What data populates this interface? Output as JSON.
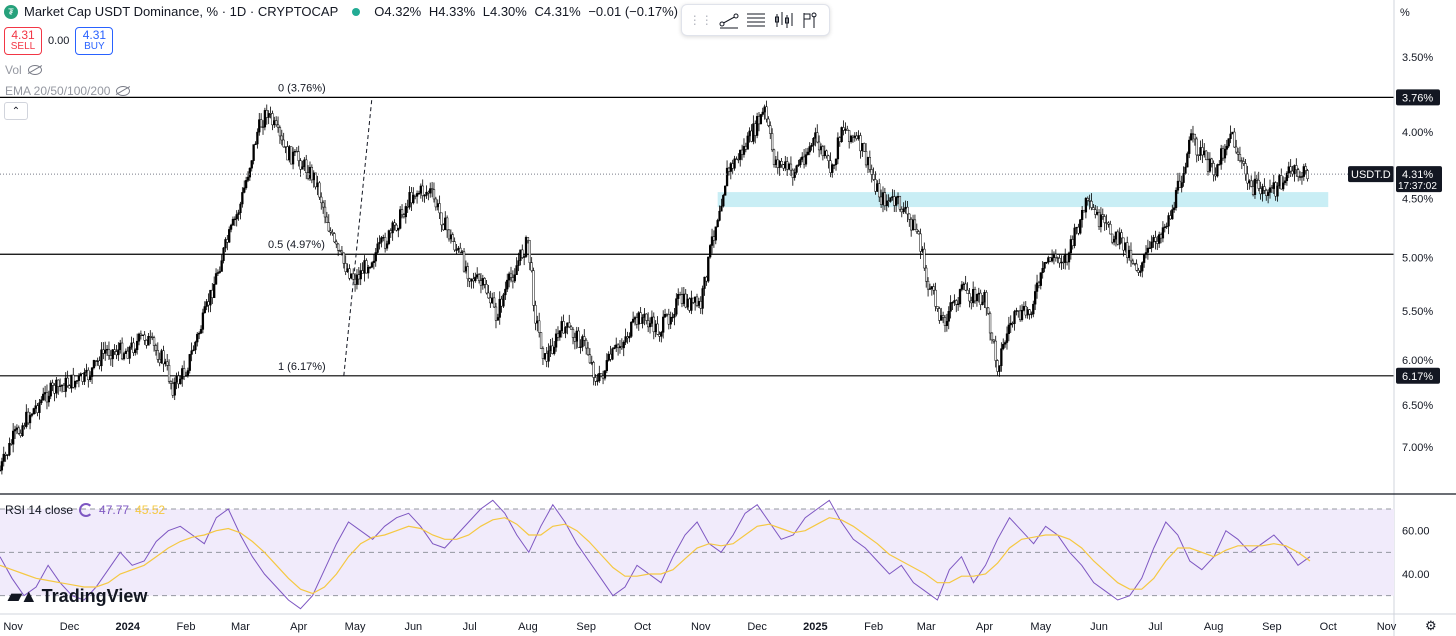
{
  "header": {
    "title": "Market Cap USDT Dominance, % · 1D · CRYPTOCAP",
    "ohlc": {
      "open": "O4.32%",
      "high": "H4.33%",
      "low": "L4.30%",
      "close": "C4.31%",
      "change": "−0.01 (−0.17%)"
    }
  },
  "trade": {
    "sell_price": "4.31",
    "sell_label": "SELL",
    "spread": "0.00",
    "buy_price": "4.31",
    "buy_label": "BUY"
  },
  "indicators": {
    "vol": "Vol",
    "ema": "EMA 20/50/100/200"
  },
  "scale_unit": "%",
  "colors": {
    "up": "#000000",
    "fib": "#000000",
    "zone": "#c9eef5",
    "rsi": "#7e57c2",
    "rsi_ma": "#f5c842",
    "rsi_band": "#f1ebfb",
    "rsi_extreme": "#f8c8d0",
    "toolbar_icons": "#131722"
  },
  "toolbar": {
    "icons": [
      "drag-handle-icon",
      "trend-line-icon",
      "horizontal-lines-icon",
      "bars-icon",
      "flag-icon"
    ]
  },
  "chart_data": [
    {
      "type": "candlestick",
      "ylabel": "",
      "scale": "log",
      "y_inverted": true,
      "ylim": [
        7.6,
        3.3
      ],
      "x_range": [
        "2023-10-25",
        "2025-11-05"
      ],
      "yticks": [
        "3.50%",
        "4.00%",
        "4.50%",
        "5.00%",
        "5.50%",
        "6.00%",
        "6.50%",
        "7.00%"
      ],
      "ytick_values": [
        3.5,
        4.0,
        4.5,
        5.0,
        5.5,
        6.0,
        6.5,
        7.0
      ],
      "xticks": [
        "Nov",
        "Dec",
        "2024",
        "Feb",
        "Mar",
        "Apr",
        "May",
        "Jun",
        "Jul",
        "Aug",
        "Sep",
        "Oct",
        "Nov",
        "Dec",
        "2025",
        "Feb",
        "Mar",
        "Apr",
        "May",
        "Jun",
        "Jul",
        "Aug",
        "Sep",
        "Oct",
        "Nov"
      ],
      "xtick_dates": [
        "2023-11-01",
        "2023-12-01",
        "2024-01-01",
        "2024-02-01",
        "2024-03-01",
        "2024-04-01",
        "2024-05-01",
        "2024-06-01",
        "2024-07-01",
        "2024-08-01",
        "2024-09-01",
        "2024-10-01",
        "2024-11-01",
        "2024-12-01",
        "2025-01-01",
        "2025-02-01",
        "2025-03-01",
        "2025-04-01",
        "2025-05-01",
        "2025-06-01",
        "2025-07-01",
        "2025-08-01",
        "2025-09-01",
        "2025-10-01",
        "2025-11-01"
      ],
      "xtick_bold": [
        "2024",
        "2025"
      ],
      "series_close": [
        [
          "2023-10-25",
          7.3
        ],
        [
          "2023-11-01",
          6.9
        ],
        [
          "2023-11-10",
          6.6
        ],
        [
          "2023-11-20",
          6.35
        ],
        [
          "2023-11-30",
          6.25
        ],
        [
          "2023-12-10",
          6.2
        ],
        [
          "2023-12-20",
          5.9
        ],
        [
          "2024-01-01",
          5.9
        ],
        [
          "2024-01-10",
          5.75
        ],
        [
          "2024-01-20",
          6.0
        ],
        [
          "2024-01-25",
          6.3
        ],
        [
          "2024-02-01",
          6.1
        ],
        [
          "2024-02-10",
          5.6
        ],
        [
          "2024-02-20",
          5.0
        ],
        [
          "2024-03-01",
          4.55
        ],
        [
          "2024-03-10",
          4.0
        ],
        [
          "2024-03-15",
          3.85
        ],
        [
          "2024-03-25",
          4.15
        ],
        [
          "2024-04-01",
          4.2
        ],
        [
          "2024-04-10",
          4.35
        ],
        [
          "2024-04-20",
          4.9
        ],
        [
          "2024-04-25",
          5.05
        ],
        [
          "2024-05-01",
          5.2
        ],
        [
          "2024-05-10",
          5.0
        ],
        [
          "2024-05-20",
          4.8
        ],
        [
          "2024-06-01",
          4.45
        ],
        [
          "2024-06-10",
          4.45
        ],
        [
          "2024-06-20",
          4.8
        ],
        [
          "2024-07-01",
          5.15
        ],
        [
          "2024-07-10",
          5.3
        ],
        [
          "2024-07-15",
          5.55
        ],
        [
          "2024-07-20",
          5.3
        ],
        [
          "2024-08-01",
          4.85
        ],
        [
          "2024-08-05",
          5.55
        ],
        [
          "2024-08-10",
          6.0
        ],
        [
          "2024-08-20",
          5.65
        ],
        [
          "2024-09-01",
          5.85
        ],
        [
          "2024-09-07",
          6.25
        ],
        [
          "2024-09-15",
          5.95
        ],
        [
          "2024-09-30",
          5.55
        ],
        [
          "2024-10-10",
          5.7
        ],
        [
          "2024-10-20",
          5.4
        ],
        [
          "2024-11-01",
          5.45
        ],
        [
          "2024-11-07",
          4.85
        ],
        [
          "2024-11-15",
          4.3
        ],
        [
          "2024-11-25",
          4.1
        ],
        [
          "2024-12-05",
          3.85
        ],
        [
          "2024-12-10",
          4.2
        ],
        [
          "2024-12-20",
          4.3
        ],
        [
          "2025-01-01",
          4.05
        ],
        [
          "2025-01-10",
          4.3
        ],
        [
          "2025-01-15",
          3.95
        ],
        [
          "2025-01-25",
          4.1
        ],
        [
          "2025-02-05",
          4.5
        ],
        [
          "2025-02-15",
          4.55
        ],
        [
          "2025-02-25",
          4.8
        ],
        [
          "2025-03-01",
          5.2
        ],
        [
          "2025-03-10",
          5.6
        ],
        [
          "2025-03-20",
          5.3
        ],
        [
          "2025-04-01",
          5.4
        ],
        [
          "2025-04-08",
          6.05
        ],
        [
          "2025-04-15",
          5.6
        ],
        [
          "2025-04-25",
          5.5
        ],
        [
          "2025-05-05",
          5.0
        ],
        [
          "2025-05-15",
          5.0
        ],
        [
          "2025-05-25",
          4.55
        ],
        [
          "2025-06-05",
          4.75
        ],
        [
          "2025-06-15",
          4.9
        ],
        [
          "2025-06-22",
          5.1
        ],
        [
          "2025-07-01",
          4.85
        ],
        [
          "2025-07-10",
          4.6
        ],
        [
          "2025-07-20",
          4.05
        ],
        [
          "2025-08-01",
          4.3
        ],
        [
          "2025-08-10",
          4.0
        ],
        [
          "2025-08-20",
          4.4
        ],
        [
          "2025-09-01",
          4.45
        ],
        [
          "2025-09-10",
          4.3
        ],
        [
          "2025-09-20",
          4.31
        ]
      ],
      "price_tag": {
        "label": "USDT.D",
        "value": "4.31%",
        "countdown": "17:37:02",
        "y": 4.31
      },
      "levels": [
        {
          "y": 3.76,
          "label": "0 (3.76%)",
          "tag": "3.76%"
        },
        {
          "y": 4.97,
          "label": "0.5 (4.97%)"
        },
        {
          "y": 6.17,
          "label": "1 (6.17%)",
          "tag": "6.17%"
        }
      ],
      "fib_trend": {
        "from": [
          "2024-04-25",
          6.17
        ],
        "to": [
          "2024-05-10",
          3.76
        ]
      },
      "zone": {
        "from": "2024-11-10",
        "to": "2025-10-01",
        "y_top": 4.45,
        "y_bottom": 4.57
      }
    },
    {
      "type": "line",
      "title": "RSI 14 close",
      "value_rsi": "47.77",
      "value_ma": "45.52",
      "ylim": [
        22,
        76
      ],
      "yticks": [
        "60.00",
        "40.00"
      ],
      "ytick_values": [
        60,
        40
      ],
      "bands": [
        70,
        50,
        30
      ],
      "series": [
        {
          "name": "RSI",
          "values": [
            48,
            38,
            30,
            34,
            44,
            36,
            30,
            28,
            34,
            42,
            50,
            44,
            46,
            55,
            60,
            62,
            58,
            54,
            66,
            70,
            58,
            48,
            40,
            34,
            28,
            24,
            30,
            42,
            54,
            64,
            60,
            56,
            62,
            66,
            68,
            62,
            54,
            52,
            58,
            64,
            70,
            74,
            68,
            58,
            50,
            62,
            72,
            64,
            54,
            46,
            38,
            30,
            34,
            44,
            40,
            36,
            48,
            58,
            64,
            54,
            50,
            58,
            68,
            72,
            64,
            56,
            58,
            66,
            70,
            74,
            64,
            56,
            52,
            46,
            40,
            44,
            36,
            32,
            28,
            42,
            48,
            36,
            44,
            56,
            66,
            60,
            54,
            62,
            58,
            50,
            44,
            36,
            32,
            28,
            30,
            38,
            52,
            64,
            58,
            46,
            42,
            48,
            60,
            56,
            50,
            54,
            58,
            52,
            44,
            48
          ]
        },
        {
          "name": "RSI-based MA",
          "values": [
            44,
            42,
            40,
            38,
            37,
            36,
            35,
            34,
            34,
            36,
            40,
            42,
            44,
            48,
            52,
            55,
            57,
            58,
            60,
            61,
            59,
            55,
            50,
            44,
            38,
            33,
            31,
            34,
            40,
            48,
            54,
            57,
            58,
            60,
            62,
            61,
            58,
            56,
            56,
            58,
            62,
            65,
            66,
            63,
            58,
            58,
            62,
            63,
            60,
            55,
            49,
            43,
            39,
            39,
            40,
            40,
            42,
            47,
            52,
            54,
            53,
            54,
            58,
            62,
            63,
            61,
            59,
            60,
            63,
            66,
            65,
            62,
            58,
            54,
            49,
            46,
            43,
            40,
            36,
            36,
            39,
            39,
            40,
            45,
            52,
            56,
            57,
            58,
            58,
            56,
            52,
            46,
            41,
            36,
            33,
            33,
            38,
            46,
            52,
            52,
            50,
            48,
            51,
            53,
            53,
            53,
            54,
            53,
            50,
            46
          ]
        }
      ]
    }
  ],
  "watermark": "TradingView"
}
